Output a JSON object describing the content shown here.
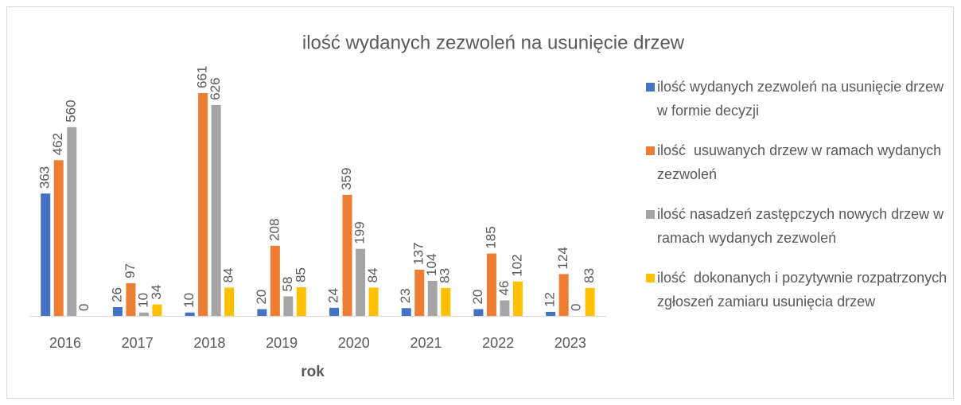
{
  "chart_data": {
    "type": "bar",
    "title": "ilość wydanych zezwoleń na usunięcie drzew",
    "x_label": "rok",
    "categories": [
      "2016",
      "2017",
      "2018",
      "2019",
      "2020",
      "2021",
      "2022",
      "2023"
    ],
    "series": [
      {
        "name": "ilość wydanych zezwoleń na usunięcie drzew w formie decyzji",
        "color": "#4472c4",
        "values": [
          363,
          26,
          10,
          20,
          24,
          23,
          20,
          12
        ]
      },
      {
        "name": "ilość  usuwanych drzew w ramach wydanych zezwoleń",
        "color": "#ed7d31",
        "values": [
          462,
          97,
          661,
          208,
          359,
          137,
          185,
          124
        ]
      },
      {
        "name": "ilość nasadzeń zastępczych nowych drzew w ramach wydanych zezwoleń",
        "color": "#a5a5a5",
        "values": [
          560,
          10,
          626,
          58,
          199,
          104,
          46,
          0
        ]
      },
      {
        "name": "ilość  dokonanych i pozytywnie rozpatrzonych zgłoszeń zamiaru usunięcia drzew",
        "color": "#ffc000",
        "values": [
          0,
          34,
          84,
          85,
          84,
          83,
          102,
          83
        ]
      }
    ],
    "legend": "right"
  }
}
